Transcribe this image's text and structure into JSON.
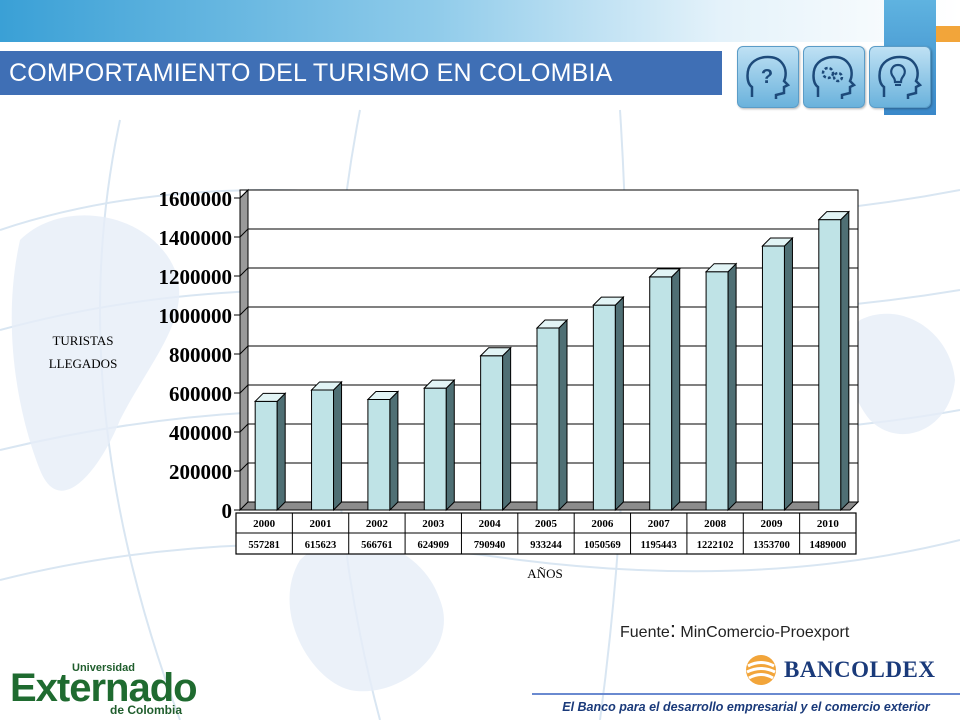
{
  "header": {
    "title": "COMPORTAMIENTO DEL TURISMO EN COLOMBIA"
  },
  "icons": [
    "question-head-icon",
    "gears-head-icon",
    "lightbulb-head-icon"
  ],
  "chart_data": {
    "type": "bar",
    "style": "3d",
    "categories": [
      "2000",
      "2001",
      "2002",
      "2003",
      "2004",
      "2005",
      "2006",
      "2007",
      "2008",
      "2009",
      "2010"
    ],
    "values": [
      557281,
      615623,
      566761,
      624909,
      790940,
      933244,
      1050569,
      1195443,
      1222102,
      1353700,
      1489000
    ],
    "value_labels": [
      "557281",
      "615623",
      "566761",
      "624909",
      "790940",
      "933244",
      "1050569",
      "1195443",
      "1222102",
      "1353700",
      "1489000"
    ],
    "y_ticks": [
      "0",
      "200000",
      "400000",
      "600000",
      "800000",
      "1000000",
      "1200000",
      "1400000",
      "1600000"
    ],
    "ylim": [
      0,
      1600000
    ],
    "ylabel_line1": "TURISTAS",
    "ylabel_line2": "LLEGADOS",
    "xlabel": "AÑOS",
    "grid": true,
    "bar_color": "#bfe3e6",
    "data_table": true
  },
  "source": {
    "prefix": "Fuente",
    "colon": ":",
    "text": "MinComercio-Proexport"
  },
  "footer": {
    "university_small": "Universidad",
    "university_big": "Externado",
    "university_sub": "de Colombia",
    "bank_name": "BANCOLDEX",
    "tagline": "El Banco para el desarrollo empresarial y el comercio exterior"
  },
  "colors": {
    "title_bar": "#3f6fb5",
    "accent_orange": "#f2a53a",
    "brand_green": "#1f6b30",
    "brand_navy": "#1a3a7a"
  }
}
